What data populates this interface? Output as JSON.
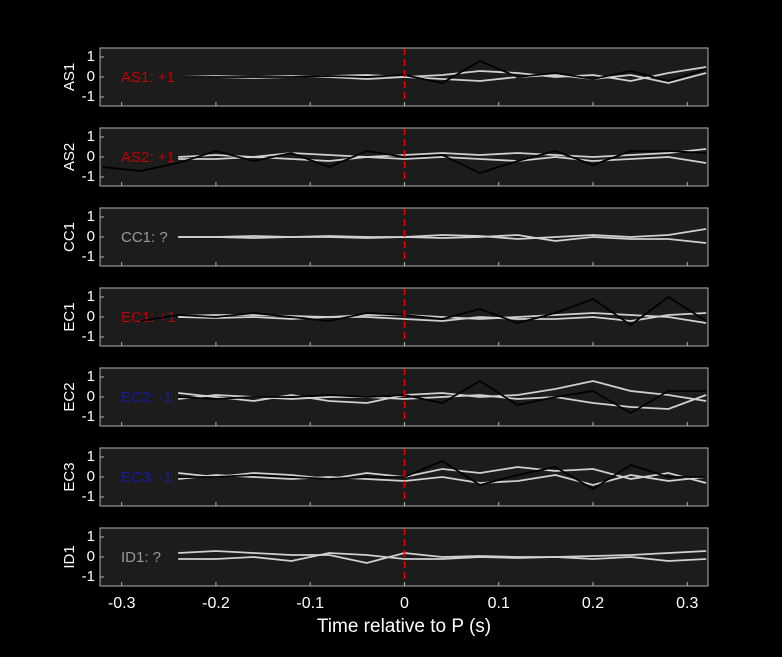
{
  "xlabel": "Time relative to P (s)",
  "chart_data": [
    {
      "type": "line",
      "ylabel": "AS1",
      "annotation": "AS1: +1",
      "annotation_color": "#c00000",
      "vline": 0,
      "vline_color": "#e00000",
      "x": [
        -0.32,
        -0.28,
        -0.24,
        -0.2,
        -0.16,
        -0.12,
        -0.08,
        -0.04,
        0,
        0.04,
        0.08,
        0.12,
        0.16,
        0.2,
        0.24,
        0.28,
        0.32
      ],
      "xlim": [
        -0.323,
        0.322
      ],
      "ylim": [
        -1.45,
        1.45
      ],
      "yticks": [
        -1,
        0,
        1
      ],
      "series": [
        {
          "color": "#d0d0d0",
          "values": [
            null,
            null,
            0,
            0.05,
            0,
            0.05,
            0,
            -0.1,
            0,
            0.1,
            0.3,
            0.2,
            0,
            0.1,
            -0.2,
            0.2,
            0.5
          ]
        },
        {
          "color": "#d0d0d0",
          "values": [
            null,
            null,
            0,
            0,
            -0.05,
            0,
            0.05,
            0.1,
            0,
            -0.1,
            -0.2,
            0,
            0.1,
            -0.1,
            0.1,
            -0.3,
            0.2
          ]
        },
        {
          "color": "#000000",
          "values": [
            null,
            null,
            0,
            0,
            0,
            0,
            0.05,
            0,
            0.1,
            -0.3,
            0.8,
            0,
            0.2,
            -0.1,
            0.3,
            -0.2,
            0.4
          ]
        }
      ]
    },
    {
      "type": "line",
      "ylabel": "AS2",
      "annotation": "AS2: +1",
      "annotation_color": "#c00000",
      "vline": 0,
      "vline_color": "#e00000",
      "x": [
        -0.32,
        -0.28,
        -0.24,
        -0.2,
        -0.16,
        -0.12,
        -0.08,
        -0.04,
        0,
        0.04,
        0.08,
        0.12,
        0.16,
        0.2,
        0.24,
        0.28,
        0.32
      ],
      "xlim": [
        -0.323,
        0.322
      ],
      "ylim": [
        -1.45,
        1.45
      ],
      "yticks": [
        -1,
        0,
        1
      ],
      "series": [
        {
          "color": "#d0d0d0",
          "values": [
            null,
            null,
            0,
            0.1,
            0,
            0.2,
            0.1,
            0,
            0.1,
            0.2,
            0.1,
            0.2,
            0.1,
            0,
            0.1,
            0.2,
            0.4
          ]
        },
        {
          "color": "#d0d0d0",
          "values": [
            null,
            null,
            -0.1,
            -0.1,
            0,
            -0.1,
            -0.2,
            0,
            -0.1,
            0,
            -0.1,
            -0.2,
            0,
            -0.2,
            -0.1,
            0,
            -0.3
          ]
        },
        {
          "color": "#000000",
          "values": [
            -0.5,
            -0.7,
            -0.3,
            0.3,
            -0.2,
            0.2,
            -0.5,
            0.3,
            0,
            0.1,
            -0.8,
            -0.2,
            0.3,
            -0.4,
            0.3,
            0.3,
            0.2
          ]
        }
      ]
    },
    {
      "type": "line",
      "ylabel": "CC1",
      "annotation": "CC1: ?",
      "annotation_color": "#999999",
      "vline": 0,
      "vline_color": "#e00000",
      "x": [
        -0.32,
        -0.28,
        -0.24,
        -0.2,
        -0.16,
        -0.12,
        -0.08,
        -0.04,
        0,
        0.04,
        0.08,
        0.12,
        0.16,
        0.2,
        0.24,
        0.28,
        0.32
      ],
      "xlim": [
        -0.323,
        0.322
      ],
      "ylim": [
        -1.45,
        1.45
      ],
      "yticks": [
        -1,
        0,
        1
      ],
      "series": [
        {
          "color": "#d0d0d0",
          "values": [
            null,
            null,
            0,
            0,
            0.05,
            0,
            0.05,
            0,
            0,
            0.1,
            0.05,
            -0.1,
            0,
            0.1,
            0,
            0.1,
            0.4
          ]
        },
        {
          "color": "#d0d0d0",
          "values": [
            null,
            null,
            0,
            0,
            -0.05,
            0,
            0,
            -0.05,
            0,
            -0.05,
            0,
            0.1,
            -0.2,
            0,
            -0.1,
            -0.1,
            -0.3
          ]
        }
      ]
    },
    {
      "type": "line",
      "ylabel": "EC1",
      "annotation": "EC1: +1",
      "annotation_color": "#c00000",
      "vline": 0,
      "vline_color": "#e00000",
      "x": [
        -0.32,
        -0.28,
        -0.24,
        -0.2,
        -0.16,
        -0.12,
        -0.08,
        -0.04,
        0,
        0.04,
        0.08,
        0.12,
        0.16,
        0.2,
        0.24,
        0.28,
        0.32
      ],
      "xlim": [
        -0.323,
        0.322
      ],
      "ylim": [
        -1.45,
        1.45
      ],
      "yticks": [
        -1,
        0,
        1
      ],
      "series": [
        {
          "color": "#d0d0d0",
          "values": [
            null,
            null,
            0.05,
            0.1,
            0.1,
            0.05,
            0,
            0.1,
            0.1,
            0,
            -0.1,
            0,
            0.1,
            0.2,
            0.1,
            0,
            -0.3
          ]
        },
        {
          "color": "#d0d0d0",
          "values": [
            null,
            null,
            0,
            -0.05,
            0,
            -0.1,
            0,
            0,
            -0.1,
            -0.2,
            0,
            -0.1,
            -0.1,
            0,
            -0.2,
            0.1,
            0.2
          ]
        },
        {
          "color": "#000000",
          "values": [
            null,
            -0.2,
            0.1,
            0,
            0.2,
            0,
            -0.2,
            0.2,
            0.1,
            -0.1,
            0.4,
            -0.3,
            0.2,
            0.9,
            -0.4,
            1.0,
            -0.2
          ]
        }
      ]
    },
    {
      "type": "line",
      "ylabel": "EC2",
      "annotation": "EC2: -1",
      "annotation_color": "#1a1aa0",
      "vline": 0,
      "vline_color": "#e00000",
      "x": [
        -0.32,
        -0.28,
        -0.24,
        -0.2,
        -0.16,
        -0.12,
        -0.08,
        -0.04,
        0,
        0.04,
        0.08,
        0.12,
        0.16,
        0.2,
        0.24,
        0.28,
        0.32
      ],
      "xlim": [
        -0.323,
        0.322
      ],
      "ylim": [
        -1.45,
        1.45
      ],
      "yticks": [
        -1,
        0,
        1
      ],
      "series": [
        {
          "color": "#d0d0d0",
          "values": [
            null,
            null,
            0.2,
            0,
            -0.2,
            0.1,
            -0.2,
            -0.3,
            0.1,
            0.2,
            0,
            0.1,
            0.4,
            0.8,
            0.3,
            0.1,
            -0.2
          ]
        },
        {
          "color": "#d0d0d0",
          "values": [
            null,
            null,
            -0.1,
            0.1,
            0,
            -0.1,
            0,
            0,
            -0.1,
            0,
            0.1,
            -0.1,
            0,
            -0.3,
            -0.5,
            -0.6,
            0.1
          ]
        },
        {
          "color": "#000000",
          "values": [
            null,
            null,
            0,
            -0.1,
            0,
            0,
            0.1,
            0,
            0.1,
            -0.3,
            0.8,
            -0.4,
            0,
            0.3,
            -0.8,
            0.3,
            0.3
          ]
        }
      ]
    },
    {
      "type": "line",
      "ylabel": "EC3",
      "annotation": "EC3: -1",
      "annotation_color": "#1a1aa0",
      "vline": 0,
      "vline_color": "#e00000",
      "x": [
        -0.32,
        -0.28,
        -0.24,
        -0.2,
        -0.16,
        -0.12,
        -0.08,
        -0.04,
        0,
        0.04,
        0.08,
        0.12,
        0.16,
        0.2,
        0.24,
        0.28,
        0.32
      ],
      "xlim": [
        -0.323,
        0.322
      ],
      "ylim": [
        -1.45,
        1.45
      ],
      "yticks": [
        -1,
        0,
        1
      ],
      "series": [
        {
          "color": "#d0d0d0",
          "values": [
            null,
            null,
            0.2,
            0,
            0.2,
            0.1,
            -0.1,
            0.2,
            0,
            0.4,
            0.2,
            0.5,
            0.3,
            0.4,
            -0.1,
            0.2,
            -0.3
          ]
        },
        {
          "color": "#d0d0d0",
          "values": [
            null,
            null,
            -0.1,
            0.1,
            0,
            -0.1,
            0,
            -0.1,
            -0.2,
            0,
            -0.3,
            -0.2,
            0.1,
            -0.4,
            0.1,
            -0.2,
            0
          ]
        },
        {
          "color": "#000000",
          "values": [
            null,
            null,
            0,
            0,
            0.1,
            0,
            -0.1,
            0,
            0,
            0.8,
            -0.4,
            0.1,
            0.5,
            -0.6,
            0.6,
            0,
            0
          ]
        }
      ]
    },
    {
      "type": "line",
      "ylabel": "ID1",
      "annotation": "ID1: ?",
      "annotation_color": "#999999",
      "vline": 0,
      "vline_color": "#e00000",
      "x": [
        -0.32,
        -0.28,
        -0.24,
        -0.2,
        -0.16,
        -0.12,
        -0.08,
        -0.04,
        0,
        0.04,
        0.08,
        0.12,
        0.16,
        0.2,
        0.24,
        0.28,
        0.32
      ],
      "xlim": [
        -0.323,
        0.322
      ],
      "ylim": [
        -1.45,
        1.45
      ],
      "yticks": [
        -1,
        0,
        1
      ],
      "xticks": [
        -0.3,
        -0.2,
        -0.1,
        0,
        0.1,
        0.2,
        0.3
      ],
      "series": [
        {
          "color": "#d0d0d0",
          "values": [
            null,
            null,
            0.2,
            0.3,
            0.2,
            0.1,
            0.1,
            -0.3,
            0.2,
            0,
            0.05,
            0,
            0,
            0.05,
            0.1,
            0.2,
            0.3
          ]
        },
        {
          "color": "#d0d0d0",
          "values": [
            null,
            null,
            -0.1,
            -0.1,
            0,
            -0.2,
            0.2,
            0.1,
            -0.1,
            -0.1,
            0,
            -0.05,
            0,
            -0.1,
            0,
            -0.2,
            -0.1
          ]
        }
      ]
    }
  ]
}
